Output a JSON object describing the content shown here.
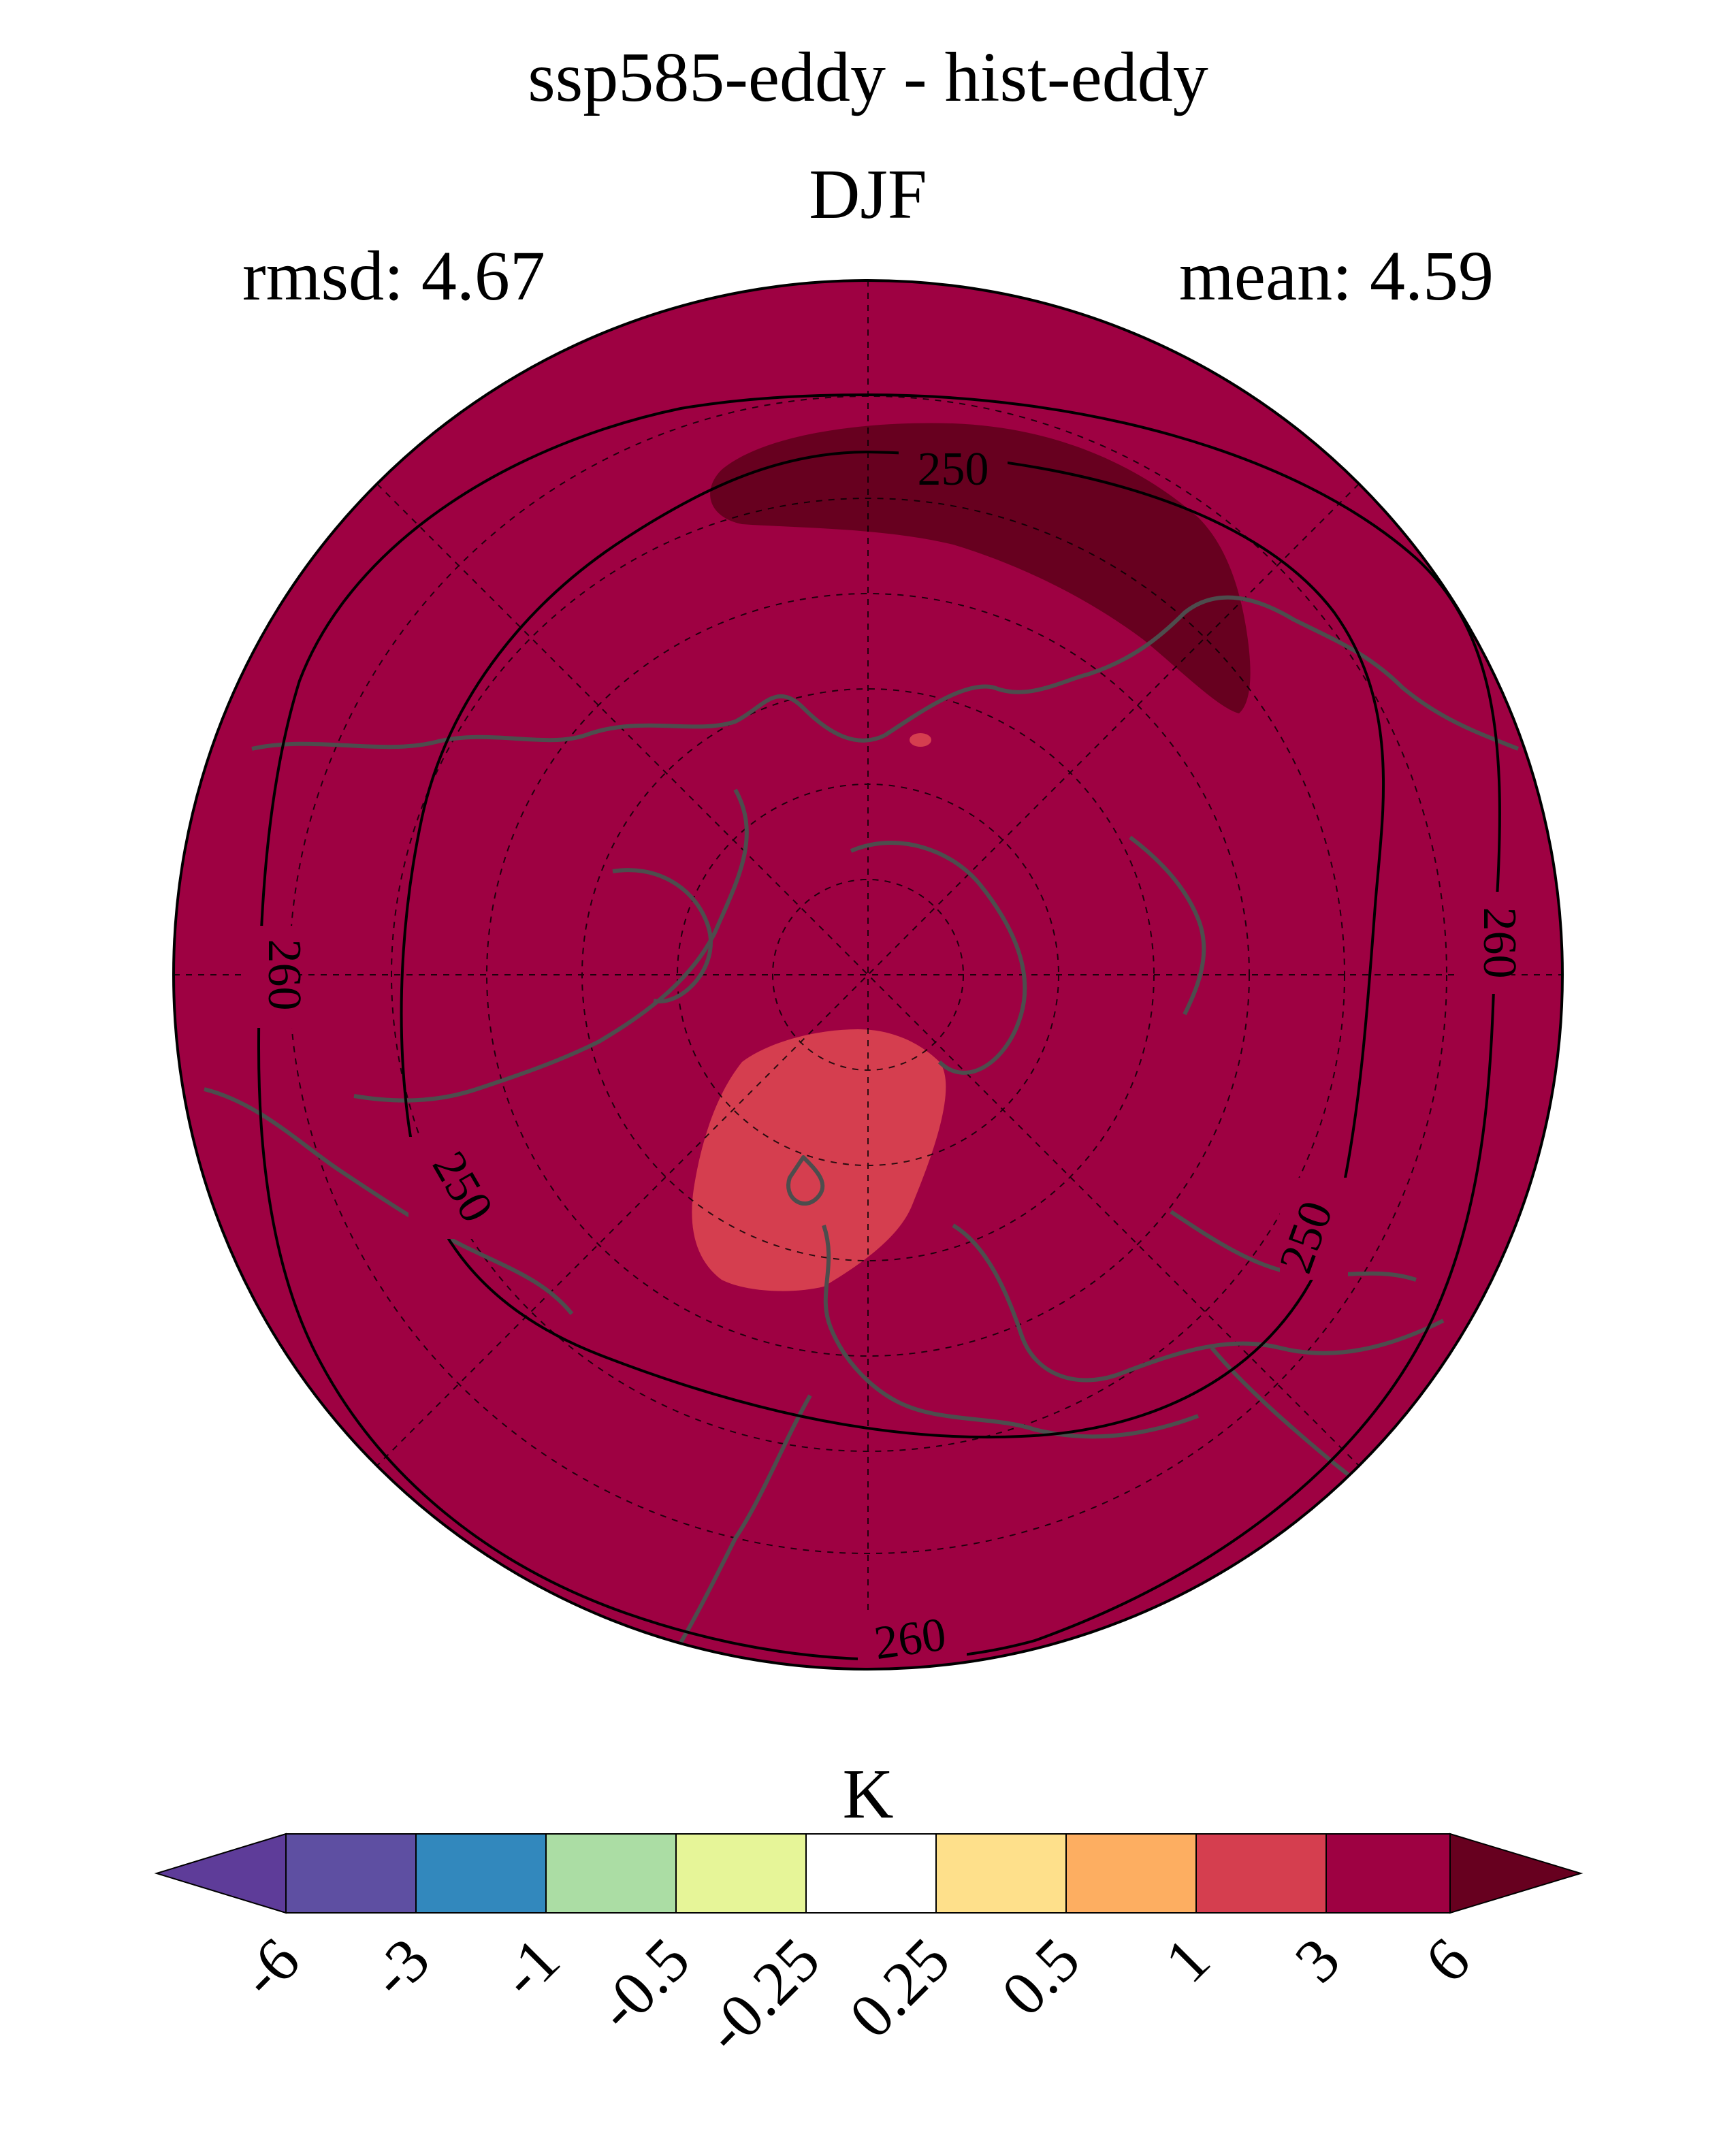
{
  "header": {
    "title": "ssp585-eddy - hist-eddy",
    "season": "DJF",
    "rmsd": "rmsd: 4.67",
    "mean": "mean: 4.59"
  },
  "map": {
    "projection": "north-polar-stereographic",
    "background_color": "#9e0142",
    "contour_labels": [
      "250",
      "250",
      "250",
      "260",
      "260",
      "260"
    ],
    "regions": [
      {
        "name": "positive-anomaly-3-to-6-over-most-of-domain",
        "color": "#9e0142"
      },
      {
        "name": "anomaly-above-6-over-north-pacific",
        "color": "#67001f"
      },
      {
        "name": "anomaly-1-to-3-over-north-atlantic",
        "color": "#d53e4f"
      }
    ]
  },
  "colorbar": {
    "unit": "K",
    "ticks": [
      "-6",
      "-3",
      "-1",
      "-0.5",
      "-0.25",
      "0.25",
      "0.5",
      "1",
      "3",
      "6"
    ],
    "colors": [
      "#5e3c99",
      "#5e4fa2",
      "#3288bd",
      "#abdda4",
      "#e6f598",
      "#ffffff",
      "#fee08b",
      "#fdae61",
      "#d53e4f",
      "#9e0142",
      "#67001f"
    ]
  }
}
